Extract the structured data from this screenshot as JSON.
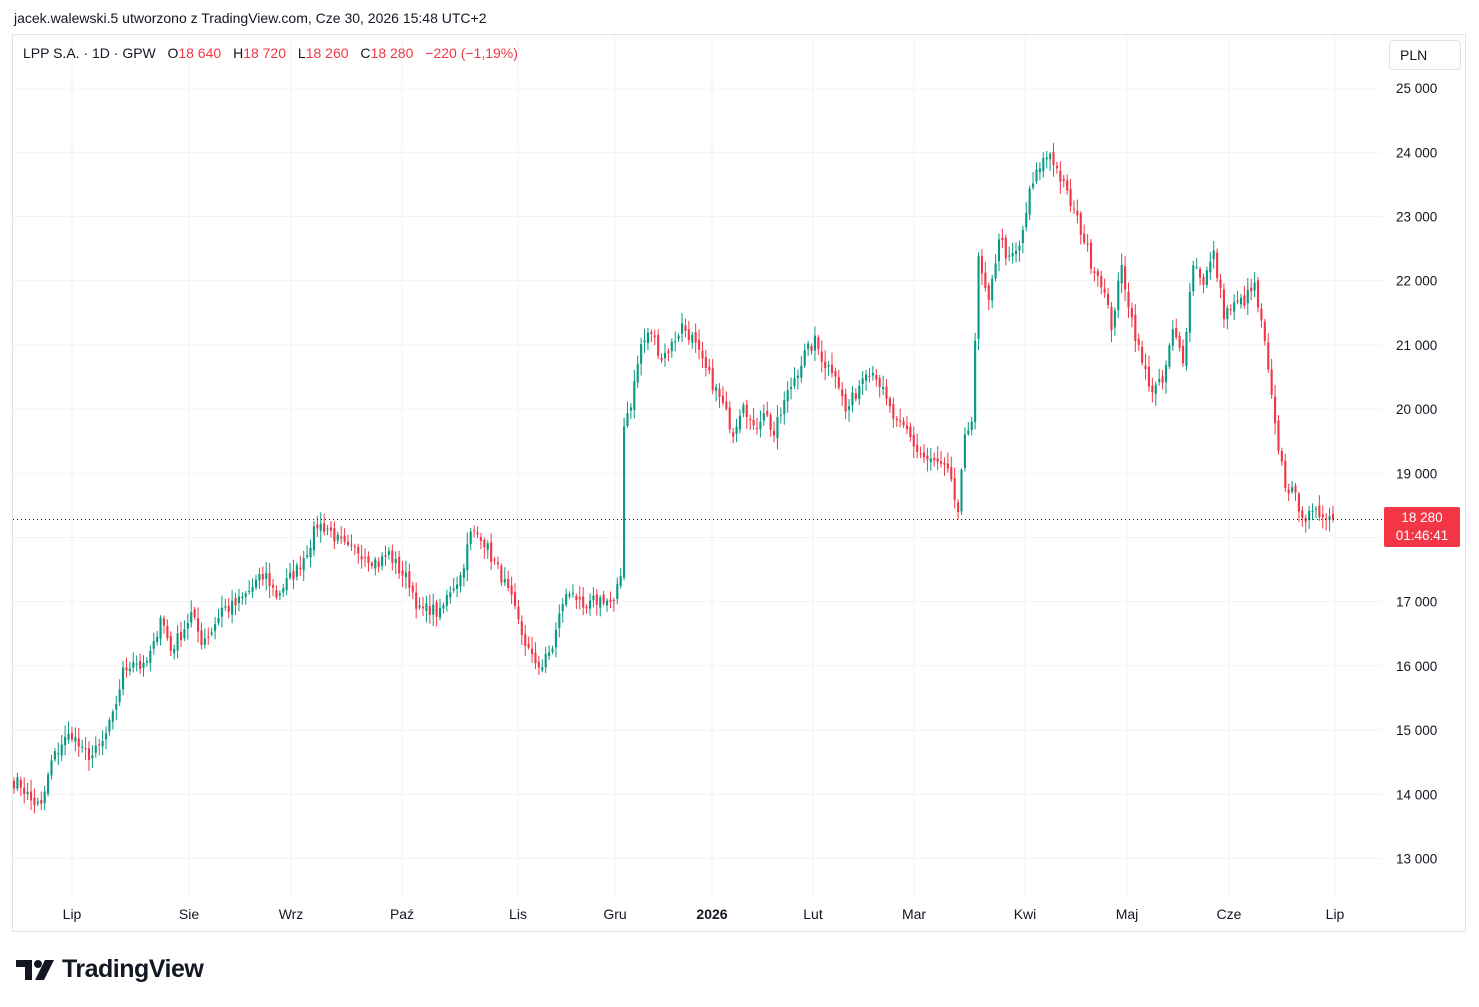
{
  "header": {
    "author_line": "jacek.walewski.5 utworzono z TradingView.com, Cze 30, 2026 15:48 UTC+2"
  },
  "legend": {
    "symbol": "LPP S.A. · 1D · GPW",
    "open_label": "O",
    "open_value": "18 640",
    "high_label": "H",
    "high_value": "18 720",
    "low_label": "L",
    "low_value": "18 260",
    "close_label": "C",
    "close_value": "18 280",
    "change": "−220 (−1,19%)"
  },
  "currency_button": "PLN",
  "price_tag": {
    "price": "18 280",
    "countdown": "01:46:41"
  },
  "brand": {
    "name": "TradingView"
  },
  "colors": {
    "up": "#089981",
    "down": "#f23645",
    "grid": "#f0f3fa",
    "axis_text": "#131722"
  },
  "chart_data": {
    "type": "candlestick",
    "y_ticks": [
      {
        "value": 25000,
        "label": "25 000"
      },
      {
        "value": 24000,
        "label": "24 000"
      },
      {
        "value": 23000,
        "label": "23 000"
      },
      {
        "value": 22000,
        "label": "22 000"
      },
      {
        "value": 21000,
        "label": "21 000"
      },
      {
        "value": 20000,
        "label": "20 000"
      },
      {
        "value": 19000,
        "label": "19 000"
      },
      {
        "value": 18000,
        "label": "18 000"
      },
      {
        "value": 17000,
        "label": "17 000"
      },
      {
        "value": 16000,
        "label": "16 000"
      },
      {
        "value": 15000,
        "label": "15 000"
      },
      {
        "value": 14000,
        "label": "14 000"
      },
      {
        "value": 13000,
        "label": "13 000"
      }
    ],
    "x_ticks": [
      {
        "label": "Lip",
        "bold": false
      },
      {
        "label": "Sie",
        "bold": false
      },
      {
        "label": "Wrz",
        "bold": false
      },
      {
        "label": "Paź",
        "bold": false
      },
      {
        "label": "Lis",
        "bold": false
      },
      {
        "label": "Gru",
        "bold": false
      },
      {
        "label": "2026",
        "bold": true
      },
      {
        "label": "Lut",
        "bold": false
      },
      {
        "label": "Mar",
        "bold": false
      },
      {
        "label": "Kwi",
        "bold": false
      },
      {
        "label": "Maj",
        "bold": false
      },
      {
        "label": "Cze",
        "bold": false
      },
      {
        "label": "Lip",
        "bold": false
      }
    ],
    "y_range": [
      12400,
      25500
    ],
    "last_price": 18280,
    "close_path": [
      [
        0,
        14200
      ],
      [
        2,
        14150
      ],
      [
        5,
        13900
      ],
      [
        8,
        13800
      ],
      [
        11,
        14500
      ],
      [
        14,
        14800
      ],
      [
        17,
        14950
      ],
      [
        20,
        14650
      ],
      [
        23,
        14600
      ],
      [
        26,
        14800
      ],
      [
        29,
        15200
      ],
      [
        32,
        15900
      ],
      [
        35,
        16100
      ],
      [
        38,
        15950
      ],
      [
        41,
        16300
      ],
      [
        43,
        16800
      ],
      [
        46,
        16250
      ],
      [
        49,
        16500
      ],
      [
        52,
        16800
      ],
      [
        55,
        16400
      ],
      [
        58,
        16550
      ],
      [
        61,
        16900
      ],
      [
        63,
        16900
      ],
      [
        65,
        16950
      ],
      [
        68,
        17100
      ],
      [
        71,
        17300
      ],
      [
        74,
        17400
      ],
      [
        77,
        17100
      ],
      [
        80,
        17300
      ],
      [
        83,
        17500
      ],
      [
        86,
        17800
      ],
      [
        89,
        18200
      ],
      [
        92,
        18150
      ],
      [
        95,
        17950
      ],
      [
        98,
        17800
      ],
      [
        101,
        17800
      ],
      [
        104,
        17700
      ],
      [
        107,
        17600
      ],
      [
        110,
        17750
      ],
      [
        113,
        17500
      ],
      [
        116,
        17300
      ],
      [
        119,
        16850
      ],
      [
        122,
        16900
      ],
      [
        125,
        16800
      ],
      [
        128,
        17200
      ],
      [
        131,
        17400
      ],
      [
        134,
        18050
      ],
      [
        137,
        18050
      ],
      [
        140,
        17700
      ],
      [
        143,
        17400
      ],
      [
        146,
        17000
      ],
      [
        149,
        16500
      ],
      [
        152,
        16100
      ],
      [
        155,
        16000
      ],
      [
        158,
        16300
      ],
      [
        161,
        17000
      ],
      [
        164,
        17200
      ],
      [
        167,
        16800
      ],
      [
        170,
        17000
      ],
      [
        173,
        17050
      ],
      [
        176,
        16950
      ],
      [
        178,
        17400
      ],
      [
        179,
        19800
      ],
      [
        181,
        20100
      ],
      [
        184,
        21000
      ],
      [
        187,
        21200
      ],
      [
        190,
        20800
      ],
      [
        193,
        21000
      ],
      [
        196,
        21300
      ],
      [
        199,
        21100
      ],
      [
        202,
        20700
      ],
      [
        205,
        20400
      ],
      [
        208,
        20050
      ],
      [
        211,
        19650
      ],
      [
        214,
        20150
      ],
      [
        217,
        19650
      ],
      [
        220,
        20000
      ],
      [
        223,
        19600
      ],
      [
        226,
        20100
      ],
      [
        229,
        20500
      ],
      [
        232,
        20850
      ],
      [
        235,
        21050
      ],
      [
        238,
        20700
      ],
      [
        241,
        20600
      ],
      [
        244,
        19950
      ],
      [
        247,
        20250
      ],
      [
        250,
        20650
      ],
      [
        253,
        20550
      ],
      [
        256,
        20100
      ],
      [
        259,
        19750
      ],
      [
        262,
        19650
      ],
      [
        265,
        19350
      ],
      [
        268,
        19200
      ],
      [
        271,
        19150
      ],
      [
        274,
        19000
      ],
      [
        277,
        18400
      ],
      [
        279,
        19500
      ],
      [
        281,
        19900
      ],
      [
        283,
        22300
      ],
      [
        286,
        21600
      ],
      [
        289,
        22700
      ],
      [
        292,
        22300
      ],
      [
        295,
        22500
      ],
      [
        298,
        23350
      ],
      [
        301,
        23800
      ],
      [
        304,
        24000
      ],
      [
        307,
        23600
      ],
      [
        310,
        23200
      ],
      [
        313,
        22800
      ],
      [
        316,
        22300
      ],
      [
        319,
        22000
      ],
      [
        322,
        21300
      ],
      [
        325,
        22200
      ],
      [
        328,
        21400
      ],
      [
        331,
        20700
      ],
      [
        334,
        20300
      ],
      [
        337,
        20400
      ],
      [
        340,
        21200
      ],
      [
        343,
        20800
      ],
      [
        346,
        22300
      ],
      [
        349,
        22000
      ],
      [
        352,
        22400
      ],
      [
        355,
        21500
      ],
      [
        358,
        21600
      ],
      [
        361,
        21700
      ],
      [
        364,
        21900
      ],
      [
        367,
        21000
      ],
      [
        370,
        19700
      ],
      [
        373,
        18850
      ],
      [
        376,
        18600
      ],
      [
        379,
        18300
      ],
      [
        382,
        18350
      ],
      [
        385,
        18400
      ],
      [
        387,
        18280
      ]
    ]
  }
}
